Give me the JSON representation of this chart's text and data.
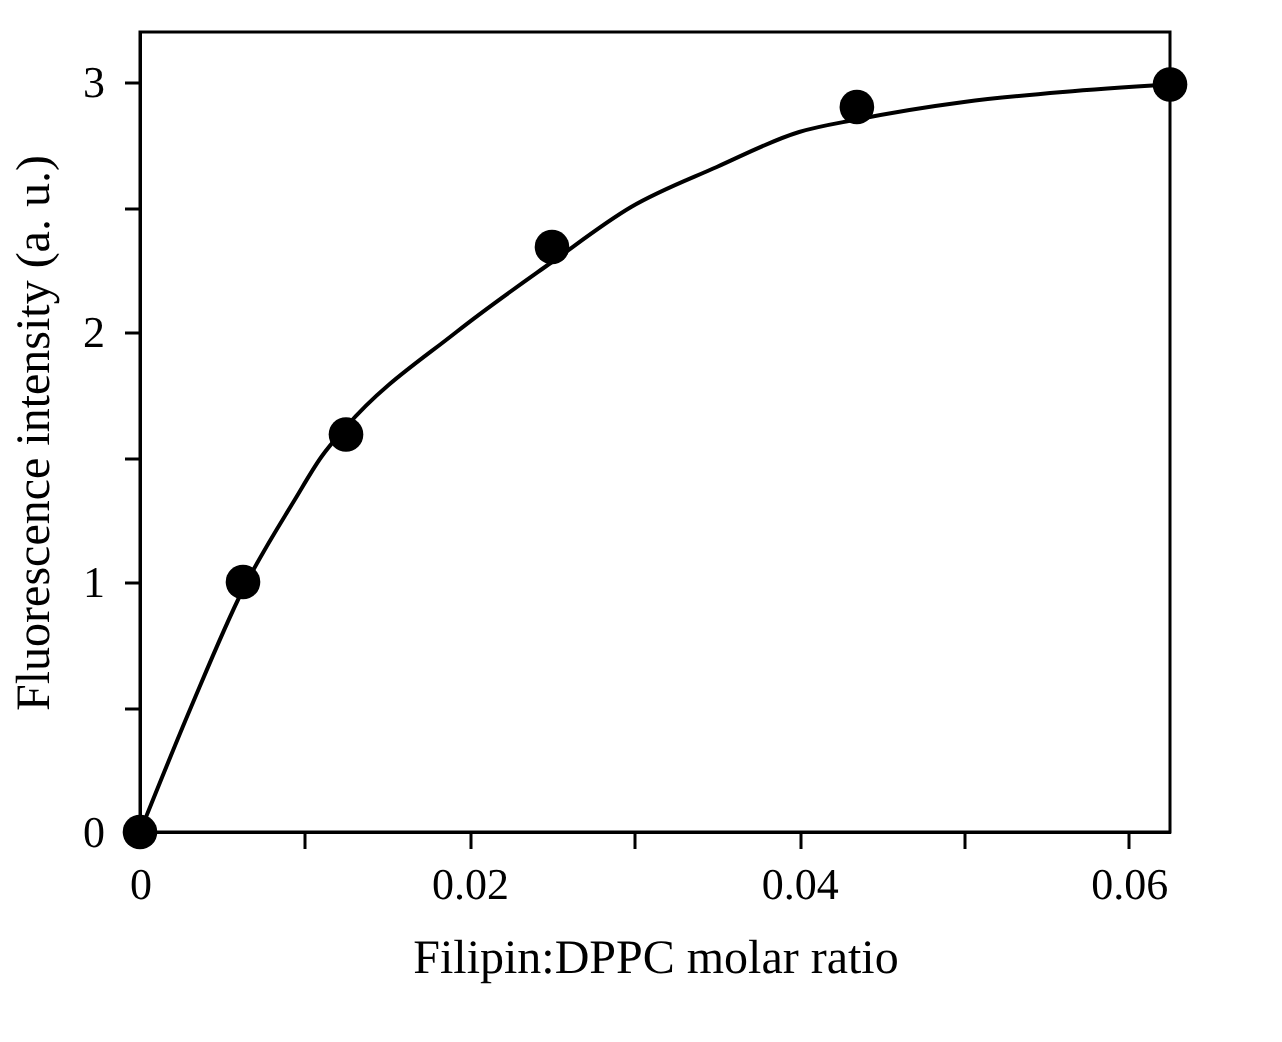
{
  "chart_data": {
    "type": "scatter",
    "xlabel": "Filipin:DPPC molar ratio",
    "ylabel": "Fluorescence intensity (a. u.)",
    "x": [
      0,
      0.00625,
      0.0125,
      0.025,
      0.0435,
      0.0625
    ],
    "series": [
      {
        "color": "#000000",
        "marker": "circle",
        "values": [
          0,
          1.0,
          1.59,
          2.34,
          2.9,
          2.99
        ]
      },
      {
        "type": "line",
        "color": "#000000",
        "marker": "none",
        "line_style": "solid",
        "x": [
          0,
          0.0031,
          0.00625,
          0.0094,
          0.011,
          0.0125,
          0.0192,
          0.025,
          0.0298,
          0.035,
          0.04,
          0.0435,
          0.05,
          0.056,
          0.0625
        ],
        "values": [
          0,
          0.5,
          0.97,
          1.33,
          1.5,
          1.62,
          2.0,
          2.28,
          2.5,
          2.66,
          2.8,
          2.85,
          2.92,
          2.96,
          2.99
        ]
      }
    ],
    "xlim": [
      0,
      0.0625
    ],
    "ylim": [
      0,
      3.2
    ],
    "xticks": [
      0,
      {
        "value": 0.01,
        "label": null
      },
      0.02,
      {
        "value": 0.03,
        "label": null
      },
      0.04,
      {
        "value": 0.05,
        "label": null
      },
      0.06
    ],
    "yticks": [
      0,
      {
        "value": 0.5,
        "label": null
      },
      1,
      {
        "value": 1.5,
        "label": null
      },
      2,
      {
        "value": 2.5,
        "label": null
      },
      3
    ]
  }
}
